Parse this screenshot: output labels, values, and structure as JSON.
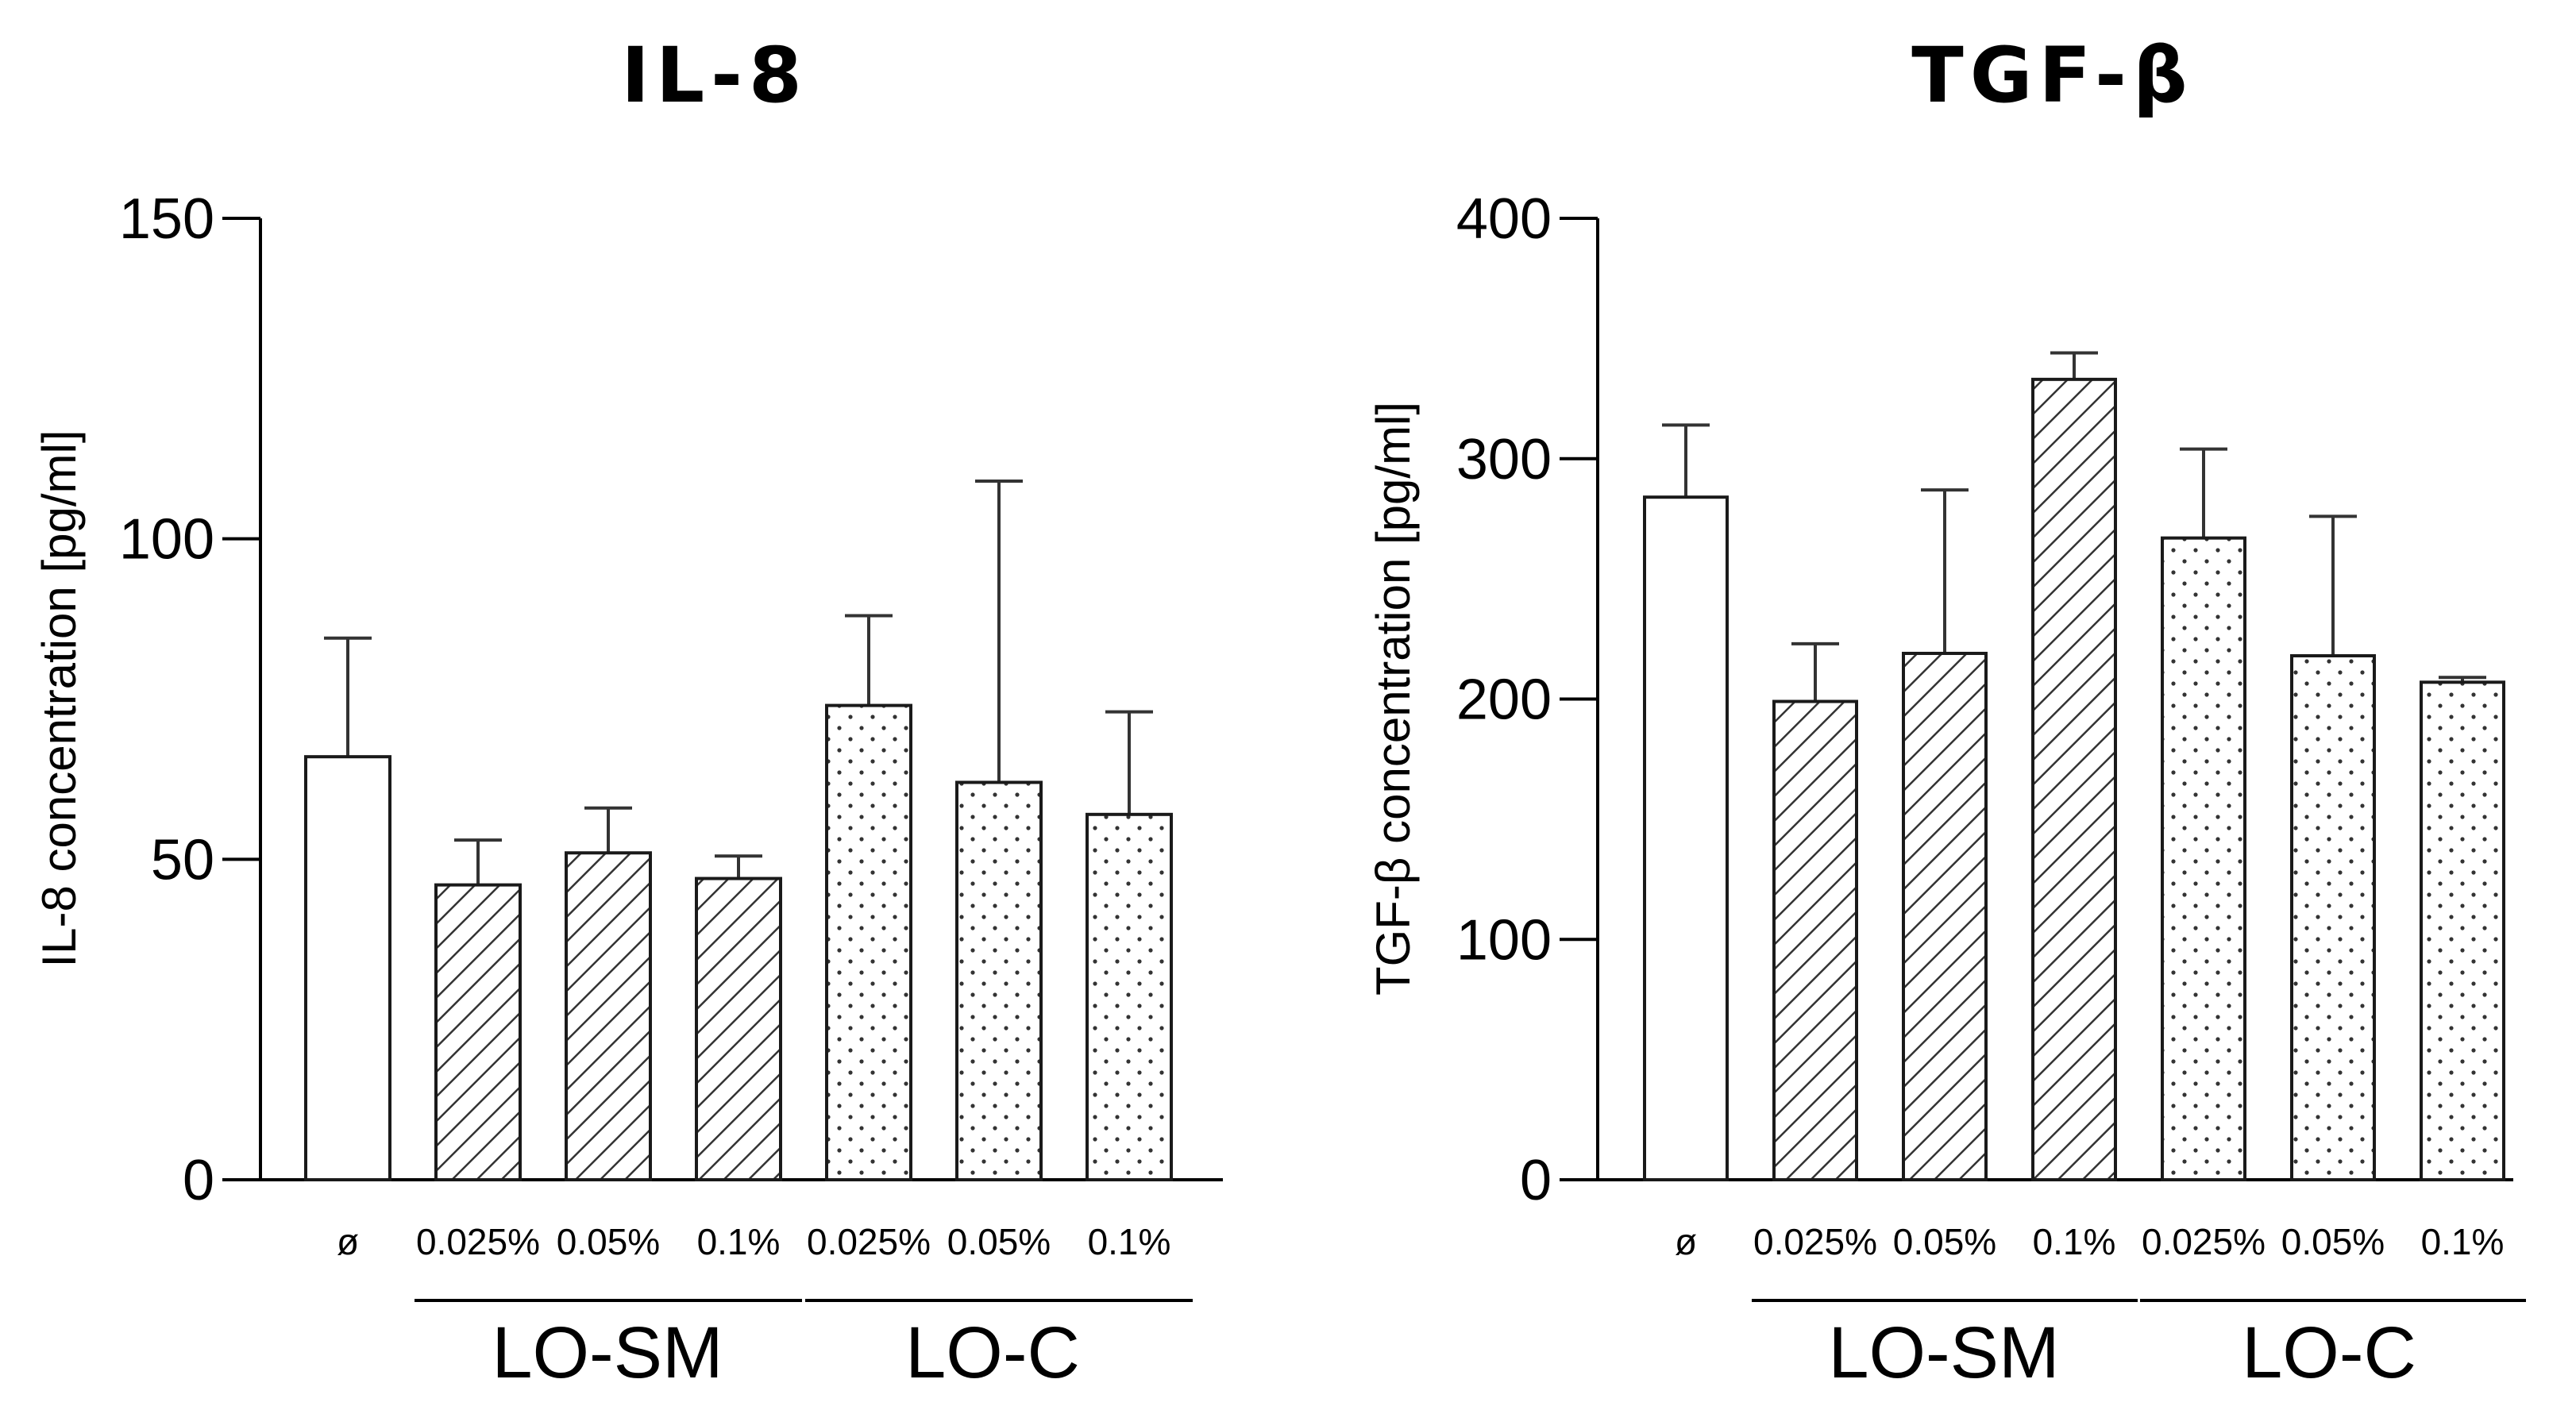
{
  "chart_data": [
    {
      "type": "bar",
      "title": "IL-8",
      "ylabel": "IL-8 concentration [pg/ml]",
      "xlabel": "",
      "ylim": [
        0,
        150
      ],
      "yticks": [
        0,
        50,
        100,
        150
      ],
      "categories": [
        "ø",
        "0.025%",
        "0.05%",
        "0.1%",
        "0.025%",
        "0.05%",
        "0.1%"
      ],
      "groups": [
        {
          "label": "LO-SM",
          "categories": [
            1,
            2,
            3
          ]
        },
        {
          "label": "LO-C",
          "categories": [
            4,
            5,
            6
          ]
        }
      ],
      "fill_patterns": [
        "none",
        "hatch",
        "hatch",
        "hatch",
        "dots",
        "dots",
        "dots"
      ],
      "values": [
        66,
        46,
        51,
        47,
        74,
        62,
        57
      ],
      "errors": [
        18.5,
        7,
        7,
        3.5,
        14,
        47,
        16
      ]
    },
    {
      "type": "bar",
      "title": "TGF-β",
      "ylabel": "TGF-β concentration [pg/ml]",
      "xlabel": "",
      "ylim": [
        0,
        400
      ],
      "yticks": [
        0,
        100,
        200,
        300,
        400
      ],
      "categories": [
        "ø",
        "0.025%",
        "0.05%",
        "0.1%",
        "0.025%",
        "0.05%",
        "0.1%"
      ],
      "groups": [
        {
          "label": "LO-SM",
          "categories": [
            1,
            2,
            3
          ]
        },
        {
          "label": "LO-C",
          "categories": [
            4,
            5,
            6
          ]
        }
      ],
      "fill_patterns": [
        "none",
        "hatch",
        "hatch",
        "hatch",
        "dots",
        "dots",
        "dots"
      ],
      "values": [
        284,
        199,
        219,
        333,
        267,
        218,
        207
      ],
      "errors": [
        30,
        24,
        68,
        11,
        37,
        58,
        2
      ]
    }
  ]
}
